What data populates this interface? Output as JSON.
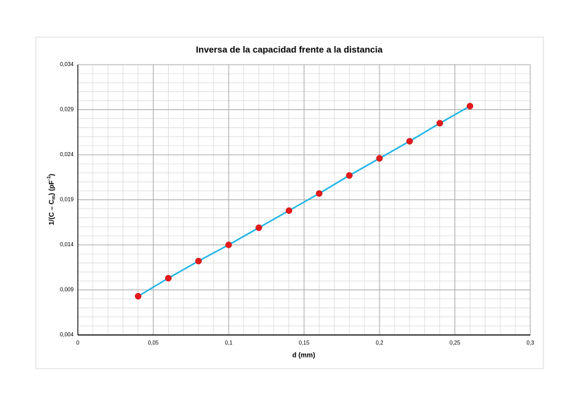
{
  "chart_data": {
    "type": "scatter",
    "title": "Inversa de la capacidad frente a la distancia",
    "x_label": "d (mm)",
    "y_label": [
      "1/(C – C",
      "m",
      ")  (pF",
      "-1",
      ")"
    ],
    "x": [
      0.04,
      0.06,
      0.08,
      0.1,
      0.12,
      0.14,
      0.16,
      0.18,
      0.2,
      0.22,
      0.24,
      0.26
    ],
    "values": [
      0.0083,
      0.0103,
      0.0122,
      0.014,
      0.0159,
      0.0178,
      0.0197,
      0.0217,
      0.0236,
      0.0255,
      0.0275,
      0.0294
    ],
    "marker_color": "#e31a1c",
    "line_color": "#1fb4e8",
    "xlim": [
      0,
      0.3
    ],
    "xticks": [
      0,
      {
        "value": 0.05,
        "label": "0,05"
      },
      {
        "value": 0.1,
        "label": "0,1"
      },
      {
        "value": 0.15,
        "label": "0,15"
      },
      {
        "value": 0.2,
        "label": "0,2"
      },
      {
        "value": 0.25,
        "label": "0,25"
      },
      {
        "value": 0.3,
        "label": "0,3"
      }
    ],
    "ylim": [
      0.004,
      0.034
    ],
    "yticks": [
      {
        "value": 0.004,
        "label": "0,004"
      },
      {
        "value": 0.009,
        "label": "0,009"
      },
      {
        "value": 0.014,
        "label": "0,014"
      },
      {
        "value": 0.019,
        "label": "0,019"
      },
      {
        "value": 0.024,
        "label": "0,024"
      },
      {
        "value": 0.029,
        "label": "0,029"
      },
      {
        "value": 0.034,
        "label": "0,034"
      }
    ],
    "grid": true,
    "minor_grid": true
  }
}
